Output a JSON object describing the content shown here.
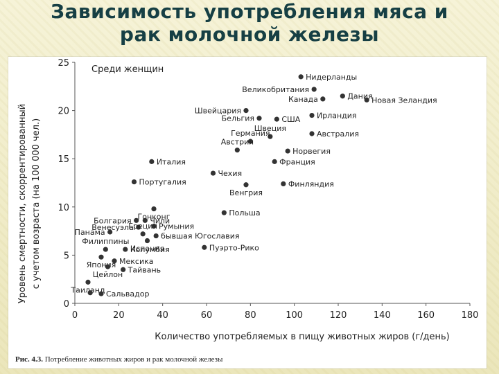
{
  "slide": {
    "title_line1": "Зависимость употребления мяса и",
    "title_line2": "рак молочной железы",
    "caption_label": "Рис. 4.3.",
    "caption_text": "Потребление животных жиров и рак молочной железы",
    "colors": {
      "title": "#163f44",
      "background": "#f3f0d2",
      "marker": "#333333"
    }
  },
  "chart_data": {
    "type": "scatter",
    "annotation": "Среди женщин",
    "xlabel": "Количество употребляемых в пищу животных жиров (г/день)",
    "ylabel_line1": "Уровень смертности, скоррентированный",
    "ylabel_line2": "с учетом возраста (на 100 000 чел.)",
    "xlim": [
      0,
      180
    ],
    "ylim": [
      0,
      25
    ],
    "xticks": [
      "0",
      "20",
      "40",
      "60",
      "80",
      "100",
      "120",
      "140",
      "160",
      "180"
    ],
    "yticks": [
      "0",
      "5",
      "10",
      "15",
      "20",
      "25"
    ],
    "grid": false,
    "points": [
      {
        "label": "Нидерланды",
        "x": 103,
        "y": 23.5
      },
      {
        "label": "Великобритания",
        "x": 109,
        "y": 22.2
      },
      {
        "label": "Дания",
        "x": 122,
        "y": 21.5
      },
      {
        "label": "Канада",
        "x": 113,
        "y": 21.2
      },
      {
        "label": "Новая Зеландия",
        "x": 133,
        "y": 21.1
      },
      {
        "label": "Швейцария",
        "x": 78,
        "y": 20.0
      },
      {
        "label": "Ирландия",
        "x": 108,
        "y": 19.5
      },
      {
        "label": "Бельгия",
        "x": 84,
        "y": 19.2
      },
      {
        "label": "США",
        "x": 92,
        "y": 19.1
      },
      {
        "label": "Швеция",
        "x": 89,
        "y": 17.3
      },
      {
        "label": "Германия",
        "x": 80,
        "y": 16.8
      },
      {
        "label": "Австралия",
        "x": 108,
        "y": 17.6
      },
      {
        "label": "Австрия",
        "x": 74,
        "y": 15.9
      },
      {
        "label": "Норвегия",
        "x": 97,
        "y": 15.8
      },
      {
        "label": "Франция",
        "x": 91,
        "y": 14.7
      },
      {
        "label": "Италия",
        "x": 35,
        "y": 14.7
      },
      {
        "label": "Чехия",
        "x": 63,
        "y": 13.5
      },
      {
        "label": "Португалия",
        "x": 27,
        "y": 12.6
      },
      {
        "label": "Венгрия",
        "x": 78,
        "y": 12.3
      },
      {
        "label": "Финляндия",
        "x": 95,
        "y": 12.4
      },
      {
        "label": "Гонконг",
        "x": 36,
        "y": 9.8
      },
      {
        "label": "Польша",
        "x": 68,
        "y": 9.4
      },
      {
        "label": "Болгария",
        "x": 28,
        "y": 8.6
      },
      {
        "label": "Венесуэла",
        "x": 29,
        "y": 7.9
      },
      {
        "label": "Чили",
        "x": 32,
        "y": 8.6
      },
      {
        "label": "Румыния",
        "x": 36,
        "y": 8.0
      },
      {
        "label": "Панама",
        "x": 16,
        "y": 7.4
      },
      {
        "label": "Греция",
        "x": 31,
        "y": 7.2
      },
      {
        "label": "бывшая Югославия",
        "x": 37,
        "y": 7.0
      },
      {
        "label": "Испания",
        "x": 33,
        "y": 6.5
      },
      {
        "label": "Филиппины",
        "x": 14,
        "y": 5.6
      },
      {
        "label": "Колумбия",
        "x": 23,
        "y": 5.6
      },
      {
        "label": "Пуэрто-Рико",
        "x": 59,
        "y": 5.8
      },
      {
        "label": "Япония",
        "x": 12,
        "y": 4.8
      },
      {
        "label": "Мексика",
        "x": 18,
        "y": 4.4
      },
      {
        "label": "Цейлон",
        "x": 15,
        "y": 3.8
      },
      {
        "label": "Тайвань",
        "x": 22,
        "y": 3.5
      },
      {
        "label": "Таиланд",
        "x": 6,
        "y": 2.2
      },
      {
        "label": "Сальвадор",
        "x": 12,
        "y": 1.0
      },
      {
        "label": "",
        "x": 7,
        "y": 1.1
      }
    ]
  }
}
